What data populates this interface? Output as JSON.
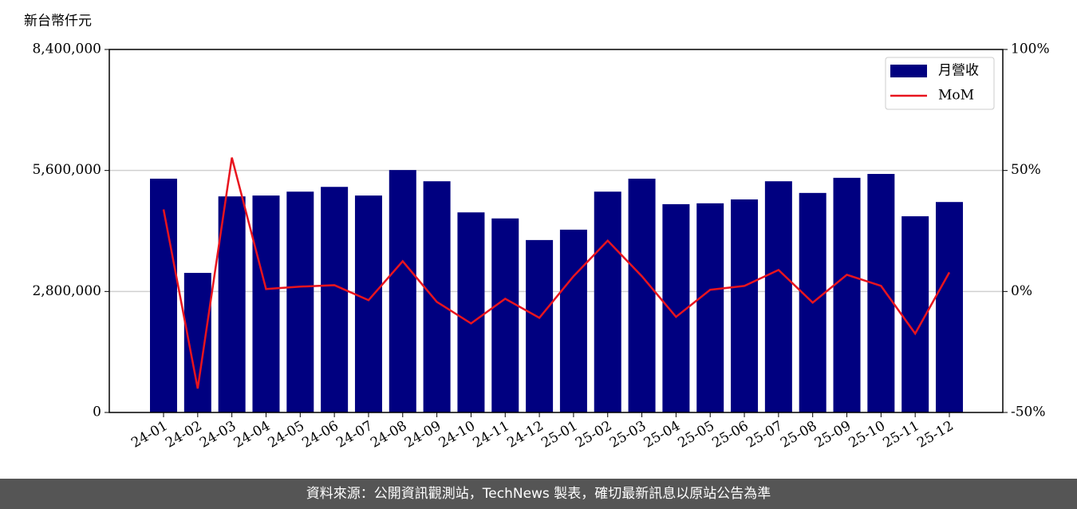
{
  "chart_data": {
    "type": "bar",
    "y_label": "新台幣仟元",
    "categories": [
      "24-01",
      "24-02",
      "24-03",
      "24-04",
      "24-05",
      "24-06",
      "24-07",
      "24-08",
      "24-09",
      "24-10",
      "24-11",
      "24-12",
      "25-01",
      "25-02",
      "25-03",
      "25-04",
      "25-05",
      "25-06",
      "25-07",
      "25-08",
      "25-09",
      "25-10",
      "25-11",
      "25-12"
    ],
    "series": [
      {
        "name": "月營收",
        "color": "#000080",
        "values": [
          5410000,
          3230000,
          5000000,
          5020000,
          5110000,
          5220000,
          5020000,
          5610000,
          5350000,
          4630000,
          4490000,
          3990000,
          4230000,
          5110000,
          5410000,
          4820000,
          4840000,
          4930000,
          5350000,
          5080000,
          5430000,
          5520000,
          4540000,
          4870000
        ]
      },
      {
        "name": "MoM",
        "color": "#e8141e",
        "axis": "y2",
        "values": [
          33.9,
          -40.1,
          55.3,
          1.0,
          2.0,
          2.6,
          -3.6,
          12.5,
          -4.3,
          -13.2,
          -3.0,
          -10.9,
          6.3,
          21.0,
          6.3,
          -10.5,
          0.7,
          2.3,
          8.9,
          -4.6,
          6.9,
          2.3,
          -17.4,
          7.9
        ]
      }
    ],
    "ylim": [
      0,
      8400000
    ],
    "yticks": [
      0,
      {
        "value": 2800000,
        "label": "2,800,000"
      },
      {
        "value": 5600000,
        "label": "5,600,000"
      },
      {
        "value": 8400000,
        "label": "8,400,000"
      }
    ],
    "y2lim": [
      -50,
      100
    ],
    "y2ticks": [
      {
        "value": -50,
        "label": "-50%"
      },
      {
        "value": 0,
        "label": "0%"
      },
      {
        "value": 50,
        "label": "50%"
      },
      {
        "value": 100,
        "label": "100%"
      }
    ],
    "grid": true,
    "legend": "upper right"
  },
  "footer": "資料來源：公開資訊觀測站，TechNews 製表，確切最新訊息以原站公告為準"
}
